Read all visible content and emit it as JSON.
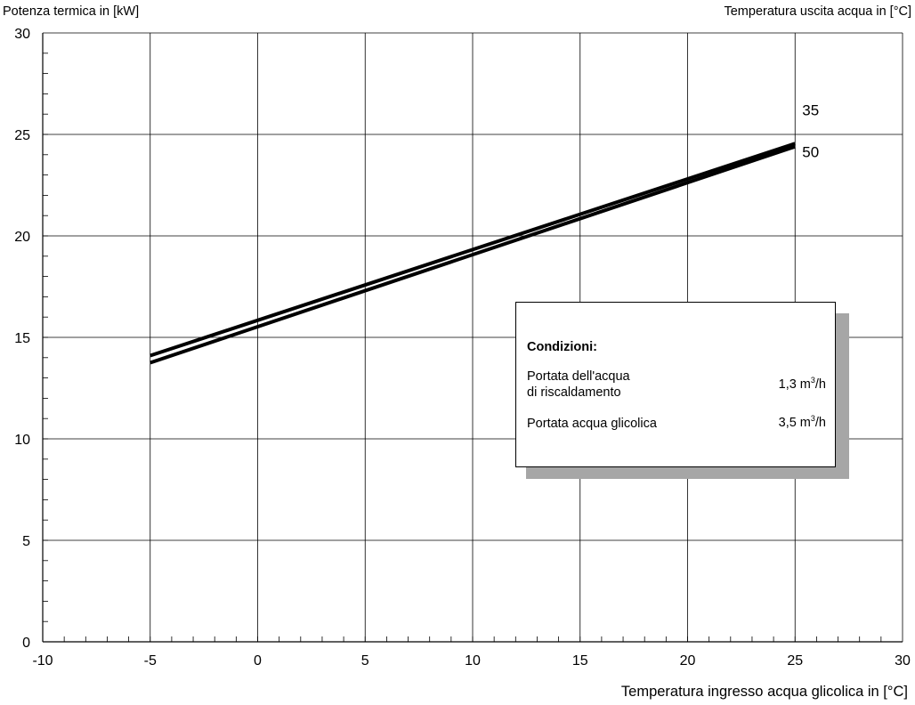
{
  "header": {
    "left_label": "Potenza termica in [kW]",
    "right_label": "Temperatura uscita acqua in [°C]"
  },
  "chart_data": {
    "type": "line",
    "xlabel": "Temperatura ingresso acqua glicolica in [°C]",
    "ylabel": "Potenza termica in [kW]",
    "legend_title": "Temperatura uscita acqua in [°C]",
    "xlim": [
      -10,
      30
    ],
    "ylim": [
      0,
      30
    ],
    "x_ticks": [
      "-10",
      "-5",
      "0",
      "5",
      "10",
      "15",
      "20",
      "25",
      "30"
    ],
    "y_ticks": [
      "0",
      "5",
      "10",
      "15",
      "20",
      "25",
      "30"
    ],
    "grid": true,
    "series": [
      {
        "name": "35",
        "x": [
          -5,
          25
        ],
        "y": [
          14.1,
          24.55
        ]
      },
      {
        "name": "50",
        "x": [
          -5,
          25
        ],
        "y": [
          13.75,
          24.4
        ]
      }
    ]
  },
  "conditions": {
    "title": "Condizioni:",
    "rows": [
      {
        "label_line1": "Portata dell'acqua",
        "label_line2": "di riscaldamento",
        "value": "1,3 m",
        "unit_sup": "3",
        "unit_suffix": "/h"
      },
      {
        "label_line1": "Portata acqua glicolica",
        "value": "3,5 m",
        "unit_sup": "3",
        "unit_suffix": "/h"
      }
    ]
  }
}
